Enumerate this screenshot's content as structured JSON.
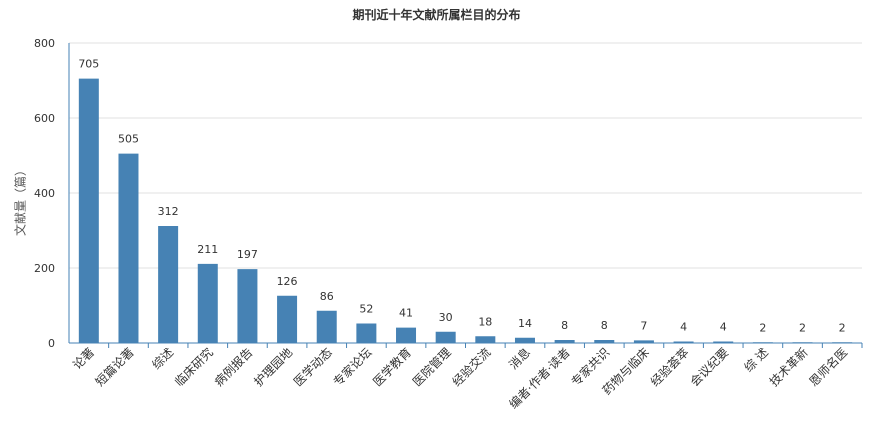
{
  "chart_data": {
    "type": "bar",
    "title": "期刊近十年文献所属栏目的分布",
    "ylabel": "文献量（篇）",
    "xlabel": "",
    "ylim": [
      0,
      800
    ],
    "yticks": [
      0,
      200,
      400,
      600,
      800
    ],
    "grid": true,
    "categories": [
      "论著",
      "短篇论著",
      "综述",
      "临床研究",
      "病例报告",
      "护理园地",
      "医学动态",
      "专家论坛",
      "医学教育",
      "医院管理",
      "经验交流",
      "消息",
      "编者·作者·读者",
      "专家共识",
      "药物与临床",
      "经验荟萃",
      "会议纪要",
      "综 述",
      "技术革新",
      "恩师名医"
    ],
    "values": [
      705,
      505,
      312,
      211,
      197,
      126,
      86,
      52,
      41,
      30,
      18,
      14,
      8,
      8,
      7,
      4,
      4,
      2,
      2,
      2
    ],
    "colors": {
      "bar": "#4682b4",
      "grid": "#e0e0e0",
      "axis": "#4682b4"
    }
  }
}
